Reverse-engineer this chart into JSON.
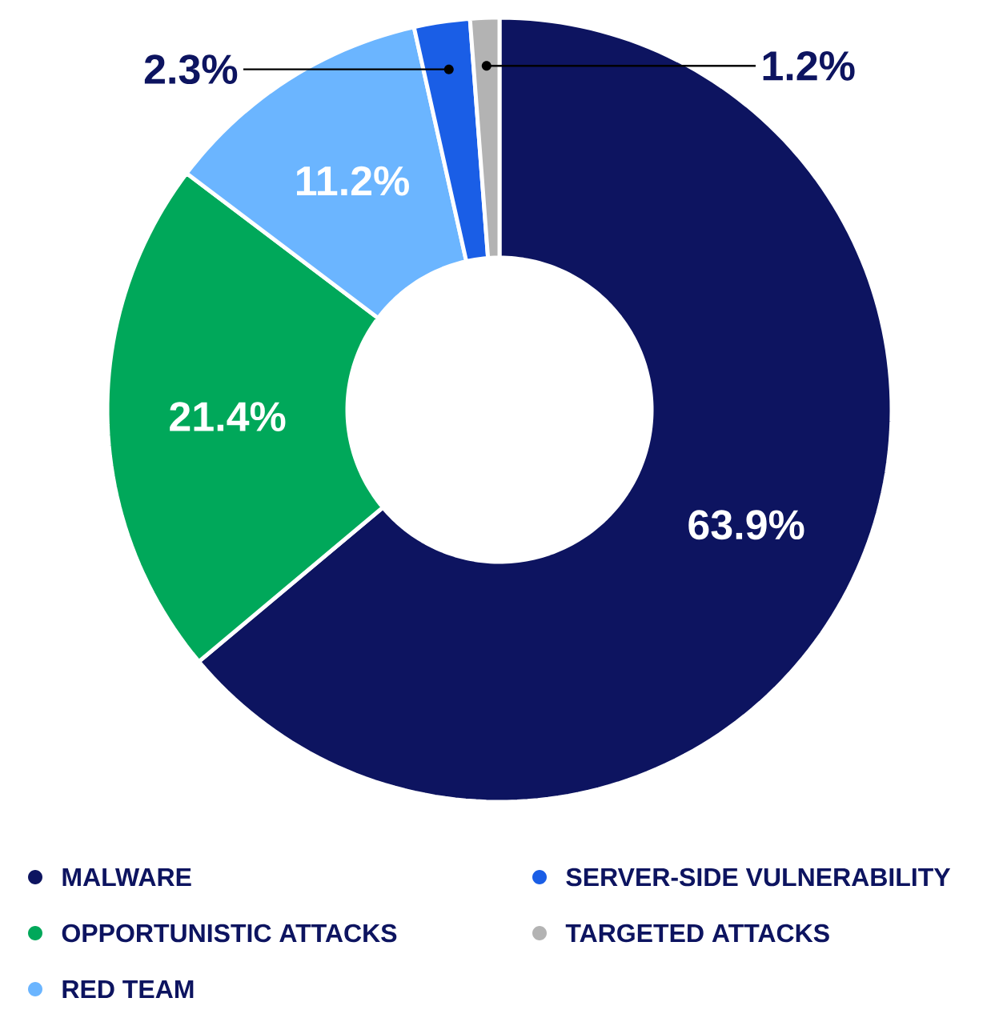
{
  "chart_data": {
    "type": "donut",
    "categories": [
      "MALWARE",
      "OPPORTUNISTIC ATTACKS",
      "RED TEAM",
      "SERVER-SIDE VULNERABILITY",
      "TARGETED ATTACKS"
    ],
    "values": [
      63.9,
      21.4,
      11.2,
      2.3,
      1.2
    ],
    "colors": [
      "#0d1460",
      "#00a85a",
      "#6bb5ff",
      "#1a5ee6",
      "#b3b3b3"
    ],
    "value_labels": [
      "63.9%",
      "21.4%",
      "11.2%",
      "2.3%",
      "1.2%"
    ],
    "legend": "bottom"
  }
}
